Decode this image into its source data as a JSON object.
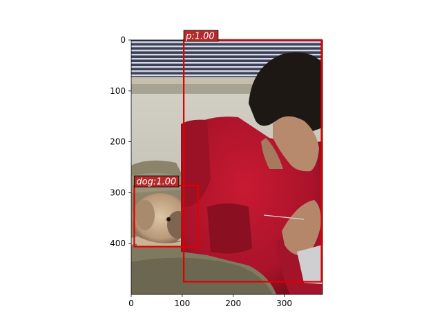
{
  "image": {
    "width": 375,
    "height": 500,
    "description_colors": {
      "blind_dark": "#3a3f55",
      "blind_light": "#d9dce4",
      "sill": "#c8c1b0",
      "wall": "#cfcdc5",
      "couch": "#8a8366",
      "couch_dark": "#5e5a45",
      "hoodie": "#b3142a",
      "hoodie_shadow": "#7e0d1d",
      "hair": "#1c1714",
      "skin": "#b98a6e",
      "dog_fur": "#c8ad8c",
      "dog_dark": "#5a4435"
    }
  },
  "axes": {
    "x_ticks": [
      "0",
      "100",
      "200",
      "300"
    ],
    "y_ticks": [
      "0",
      "100",
      "200",
      "300",
      "400"
    ],
    "x_tick_values": [
      0,
      100,
      200,
      300
    ],
    "y_tick_values": [
      0,
      100,
      200,
      300,
      400
    ]
  },
  "detections": [
    {
      "label": "p:1.00",
      "x0": 103,
      "y0": 0,
      "x1": 373,
      "y1": 475
    },
    {
      "label": "dog:1.00",
      "x0": 6,
      "y0": 286,
      "x1": 131,
      "y1": 406
    }
  ],
  "colors": {
    "box": "#e00000",
    "label_bg": "#b52b2b",
    "label_border": "#000000"
  }
}
